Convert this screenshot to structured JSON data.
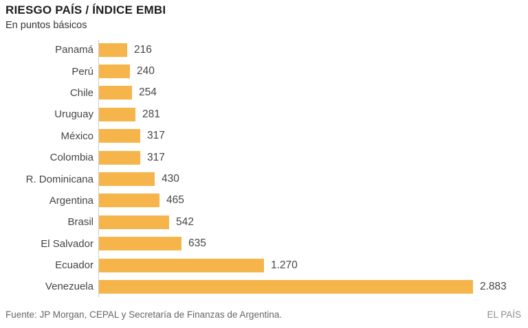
{
  "title": "RIESGO PAÍS / ÍNDICE EMBI",
  "subtitle": "En puntos básicos",
  "source": "Fuente: JP Morgan, CEPAL y Secretaría de Finanzas de Argentina.",
  "brand": "EL PAÍS",
  "colors": {
    "bar": "#f5b54b",
    "axis": "#cccccc",
    "title_text": "#1d1d1d",
    "label_text": "#444444",
    "source_text": "#666666",
    "brand_text": "#8c8c8c"
  },
  "chart_data": {
    "type": "bar",
    "orientation": "horizontal",
    "title": "RIESGO PAÍS / ÍNDICE EMBI",
    "subtitle": "En puntos básicos",
    "unit": "puntos básicos",
    "categories": [
      "Panamá",
      "Perú",
      "Chile",
      "Uruguay",
      "México",
      "Colombia",
      "R. Dominicana",
      "Argentina",
      "Brasil",
      "El Salvador",
      "Ecuador",
      "Venezuela"
    ],
    "values": [
      216,
      240,
      254,
      281,
      317,
      317,
      430,
      465,
      542,
      635,
      1270,
      2883
    ],
    "value_labels": [
      "216",
      "240",
      "254",
      "281",
      "317",
      "317",
      "430",
      "465",
      "542",
      "635",
      "1.270",
      "2.883"
    ],
    "xlabel": "",
    "ylabel": "",
    "xlim": [
      0,
      2883
    ],
    "grid": false,
    "legend": "none"
  }
}
